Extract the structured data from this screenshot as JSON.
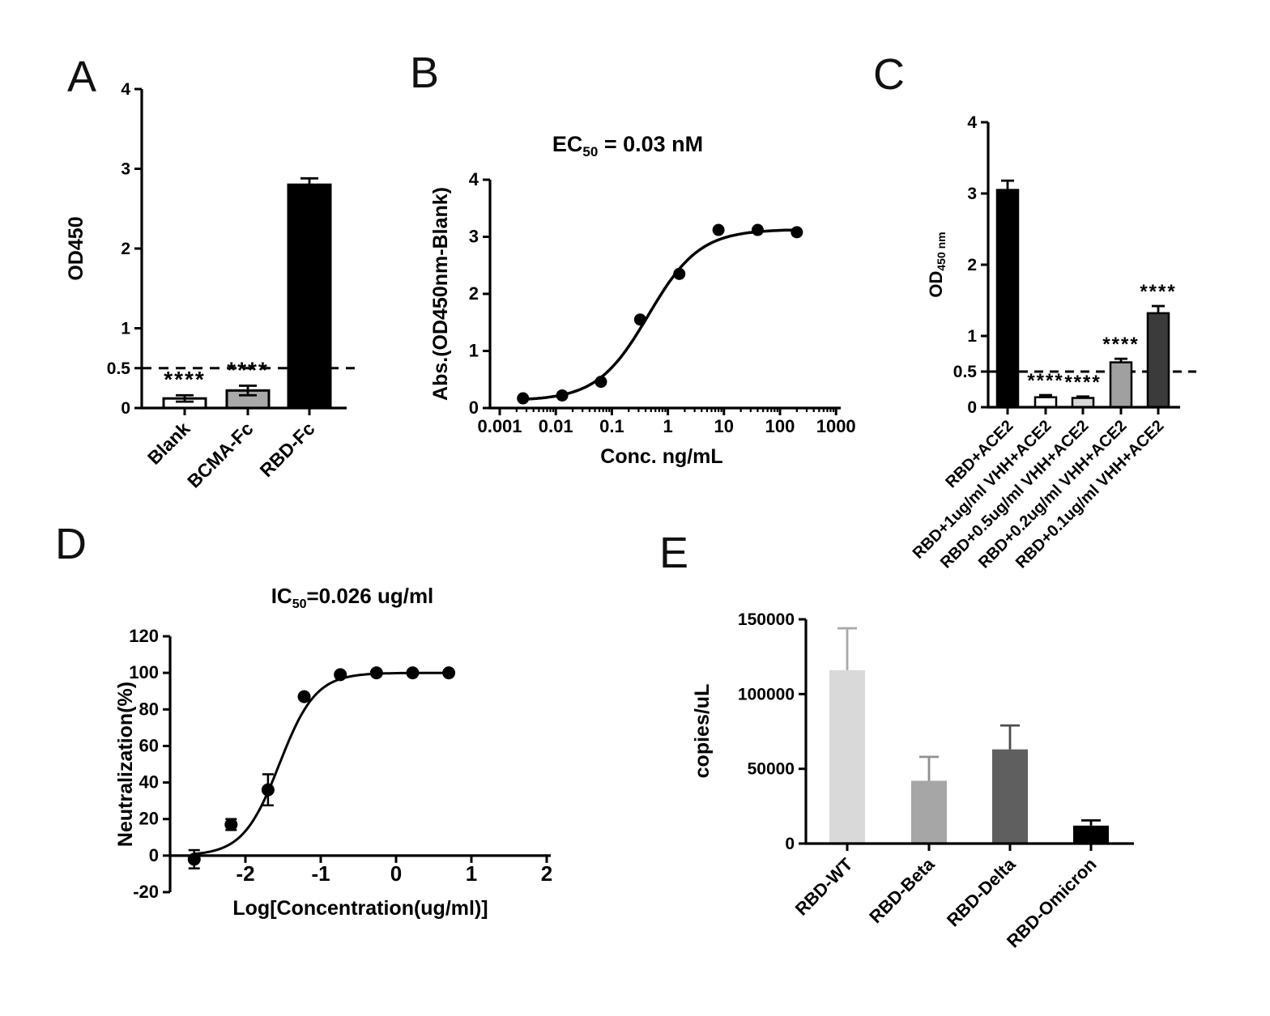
{
  "figure": {
    "panels": [
      {
        "letter": "A"
      },
      {
        "letter": "B"
      },
      {
        "letter": "C"
      },
      {
        "letter": "D"
      },
      {
        "letter": "E"
      }
    ]
  },
  "chart_data": [
    {
      "panel": "A",
      "type": "bar",
      "ylabel": "OD450",
      "categories": [
        "Blank",
        "BCMA-Fc",
        "RBD-Fc"
      ],
      "values": [
        0.12,
        0.22,
        2.8
      ],
      "errors": [
        0.04,
        0.06,
        0.08
      ],
      "bar_colors": [
        "#ffffff",
        "#a9a9a9",
        "#000000"
      ],
      "significance": [
        "****",
        "****",
        null
      ],
      "ylim": [
        0,
        4
      ],
      "yticks": [
        0,
        0.5,
        1,
        2,
        3,
        4
      ],
      "ytick_labels": [
        "0",
        "0.5",
        "1",
        "2",
        "3",
        "4"
      ],
      "threshold": 0.5,
      "grid": false
    },
    {
      "panel": "B",
      "type": "scatter",
      "title": {
        "pre": "EC",
        "sub": "50",
        "post": " = 0.03 nM"
      },
      "xlabel": "Conc. ng/mL",
      "ylabel": "Abs.(OD450nm-Blank)",
      "xscale": "log",
      "x": [
        0.0026,
        0.013,
        0.064,
        0.32,
        1.6,
        8,
        40,
        200
      ],
      "y": [
        0.17,
        0.22,
        0.46,
        1.55,
        2.35,
        3.12,
        3.12,
        3.08
      ],
      "errors": [
        0,
        0,
        0,
        0,
        0,
        0,
        0,
        0
      ],
      "curve": {
        "model": "4pl",
        "bottom": 0.13,
        "top": 3.13,
        "ec50": 0.45,
        "hill": 0.95
      },
      "xlim": [
        0.001,
        1000
      ],
      "ylim": [
        0,
        4
      ],
      "xticks": [
        0.001,
        0.01,
        0.1,
        1,
        10,
        100,
        1000
      ],
      "xtick_labels": [
        "0.001",
        "0.01",
        "0.1",
        "1",
        "10",
        "100",
        "1000"
      ],
      "yticks": [
        0,
        1,
        2,
        3,
        4
      ],
      "ytick_labels": [
        "0",
        "1",
        "2",
        "3",
        "4"
      ],
      "grid": false
    },
    {
      "panel": "C",
      "type": "bar",
      "ylabel": {
        "pre": "OD",
        "sub": "450 nm",
        "post": ""
      },
      "categories": [
        "RBD+ACE2",
        "RBD+1ug/ml VHH+ACE2",
        "RBD+0.5ug/ml VHH+ACE2",
        "RBD+0.2ug/ml VHH+ACE2",
        "RBD+0.1ug/ml VHH+ACE2"
      ],
      "values": [
        3.05,
        0.14,
        0.13,
        0.63,
        1.32
      ],
      "errors": [
        0.13,
        0.03,
        0.02,
        0.05,
        0.1
      ],
      "bar_colors": [
        "#000000",
        "#ffffff",
        "#d8d8d8",
        "#a0a0a0",
        "#3b3b3b"
      ],
      "significance": [
        null,
        "****",
        "****",
        "****",
        "****"
      ],
      "ylim": [
        0,
        4
      ],
      "yticks": [
        0,
        0.5,
        1,
        2,
        3,
        4
      ],
      "ytick_labels": [
        "0",
        "0.5",
        "1",
        "2",
        "3",
        "4"
      ],
      "threshold": 0.5,
      "grid": false
    },
    {
      "panel": "D",
      "type": "scatter",
      "title": {
        "pre": "IC",
        "sub": "50",
        "post": "=0.026 ug/ml"
      },
      "xlabel": "Log[Concentration(ug/ml)]",
      "ylabel": "Neutralization(%)",
      "xscale": "linear",
      "x": [
        -2.68,
        -2.19,
        -1.7,
        -1.22,
        -0.74,
        -0.26,
        0.22,
        0.7
      ],
      "y": [
        -2,
        17,
        36,
        87,
        99,
        100,
        100,
        100
      ],
      "errors": [
        5,
        3,
        8.5,
        0,
        0,
        0,
        0,
        0
      ],
      "curve": {
        "model": "logistic",
        "bottom": 0,
        "top": 100,
        "xmid": -1.55,
        "hill": 1.8
      },
      "xlim": [
        -3,
        2
      ],
      "ylim": [
        -20,
        120
      ],
      "xticks": [
        -2,
        -1,
        0,
        1,
        2
      ],
      "xtick_labels": [
        "-2",
        "-1",
        "0",
        "1",
        "2"
      ],
      "yticks": [
        120,
        100,
        80,
        60,
        40,
        20,
        0,
        -20
      ],
      "ytick_labels": [
        "120",
        "100",
        "80",
        "60",
        "40",
        "20",
        "0",
        "-20"
      ],
      "x_axis_at": 0,
      "grid": false
    },
    {
      "panel": "E",
      "type": "bar",
      "ylabel": "copies/uL",
      "categories": [
        "RBD-WT",
        "RBD-Beta",
        "RBD-Delta",
        "RBD-Omicron"
      ],
      "values": [
        116000,
        42000,
        63000,
        12000
      ],
      "errors": [
        28000,
        16000,
        16000,
        3500
      ],
      "bar_colors": [
        "#d9d9d9",
        "#a6a6a6",
        "#5f5f5f",
        "#000000"
      ],
      "error_colors": [
        "#aaaaaa",
        "#909090",
        "#4d4d4d",
        "#000000"
      ],
      "significance": [
        null,
        null,
        null,
        null
      ],
      "ylim": [
        0,
        150000
      ],
      "yticks": [
        0,
        50000,
        100000,
        150000
      ],
      "ytick_labels": [
        "0",
        "50000",
        "100000",
        "150000"
      ],
      "grid": false
    }
  ]
}
